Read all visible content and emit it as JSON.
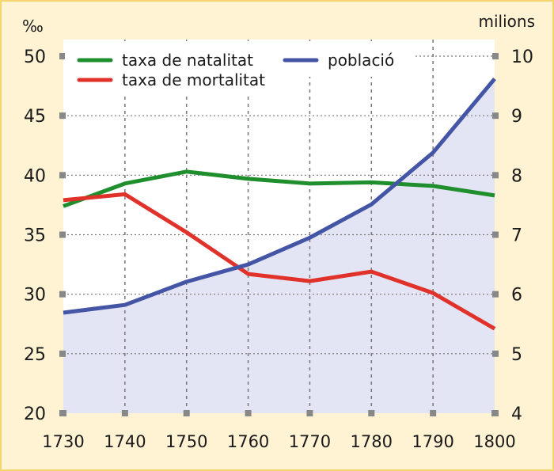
{
  "chart_data": {
    "type": "line",
    "x": [
      1730,
      1740,
      1750,
      1760,
      1770,
      1780,
      1790,
      1800
    ],
    "left_axis": {
      "label": "‰",
      "ylim": [
        20,
        50
      ],
      "ticks": [
        20,
        25,
        30,
        35,
        40,
        45,
        50
      ]
    },
    "right_axis": {
      "label": "milions",
      "ylim": [
        4,
        10
      ],
      "ticks": [
        4,
        5,
        6,
        7,
        8,
        9,
        10
      ]
    },
    "grid": true,
    "legend_placement": "top-left",
    "series": [
      {
        "name": "taxa de natalitat",
        "axis": "left",
        "color": "#1f8f2e",
        "values": [
          37.4,
          39.3,
          40.3,
          39.7,
          39.3,
          39.4,
          39.1,
          38.3
        ]
      },
      {
        "name": "taxa de mortalitat",
        "axis": "left",
        "color": "#e0312a",
        "values": [
          37.9,
          38.4,
          35.2,
          31.7,
          31.1,
          31.9,
          30.1,
          27.1
        ]
      },
      {
        "name": "població",
        "axis": "right",
        "color": "#4555a6",
        "fill": "#e3e5f4",
        "values": [
          5.69,
          5.82,
          6.21,
          6.5,
          6.95,
          7.51,
          8.38,
          9.62
        ]
      }
    ]
  }
}
